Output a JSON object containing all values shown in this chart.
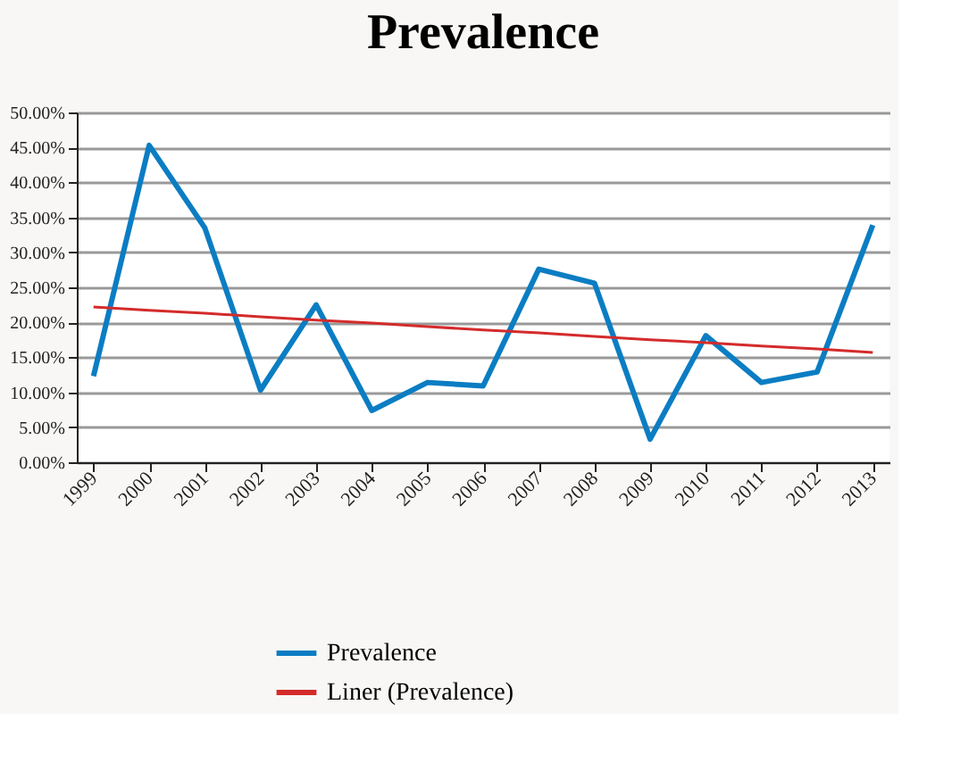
{
  "chart_data": {
    "type": "line",
    "title": "Prevalence",
    "categories": [
      "1999",
      "2000",
      "2001",
      "2002",
      "2003",
      "2004",
      "2005",
      "2006",
      "2007",
      "2008",
      "2009",
      "2010",
      "2011",
      "2012",
      "2013"
    ],
    "series": [
      {
        "name": "Prevalence",
        "color": "#0b7dc3",
        "values": [
          12.3,
          45.3,
          33.5,
          10.3,
          22.5,
          7.4,
          11.4,
          10.9,
          27.6,
          25.6,
          3.3,
          18.1,
          11.4,
          12.9,
          33.9
        ]
      },
      {
        "name": "Liner (Prevalence)",
        "type": "line",
        "color": "#d42b2b",
        "values": [
          22.2,
          21.7,
          21.3,
          20.8,
          20.3,
          19.9,
          19.4,
          18.9,
          18.5,
          18.0,
          17.5,
          17.1,
          16.6,
          16.2,
          15.7
        ]
      }
    ],
    "ylim": [
      0,
      50
    ],
    "yticks": [
      {
        "value": 0,
        "label": "0.00%"
      },
      {
        "value": 5,
        "label": "5.00%"
      },
      {
        "value": 10,
        "label": "10.00%"
      },
      {
        "value": 15,
        "label": "15.00%"
      },
      {
        "value": 20,
        "label": "20.00%"
      },
      {
        "value": 25,
        "label": "25.00%"
      },
      {
        "value": 30,
        "label": "30.00%"
      },
      {
        "value": 35,
        "label": "35.00%"
      },
      {
        "value": 40,
        "label": "40.00%"
      },
      {
        "value": 45,
        "label": "45.00%"
      },
      {
        "value": 50,
        "label": "50.00%"
      }
    ],
    "grid": "y",
    "legend": "bottom",
    "marker": "none",
    "line_style": "solid"
  }
}
